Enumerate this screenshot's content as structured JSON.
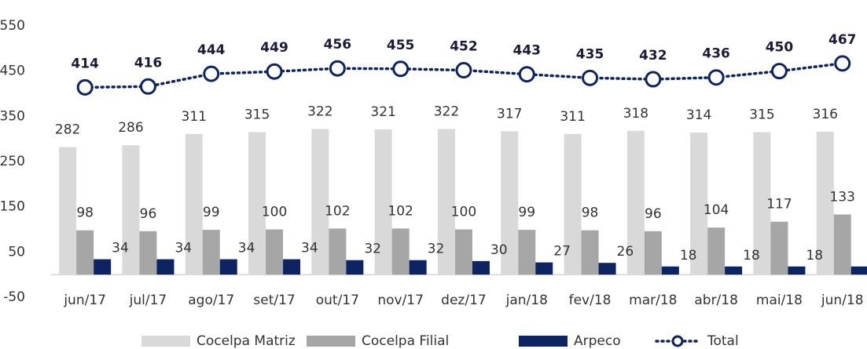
{
  "chart_data": {
    "type": "bar",
    "categories": [
      "jun/17",
      "jul/17",
      "ago/17",
      "set/17",
      "out/17",
      "nov/17",
      "dez/17",
      "jan/18",
      "fev/18",
      "mar/18",
      "abr/18",
      "mai/18",
      "jun/18"
    ],
    "series": [
      {
        "name": "Cocelpa Matriz",
        "type": "bar",
        "color": "#d9d9d9",
        "values": [
          282,
          286,
          311,
          315,
          322,
          321,
          322,
          317,
          311,
          318,
          314,
          315,
          316
        ]
      },
      {
        "name": "Cocelpa Filial",
        "type": "bar",
        "color": "#a6a6a6",
        "values": [
          98,
          96,
          99,
          100,
          102,
          102,
          100,
          99,
          98,
          96,
          104,
          117,
          133
        ]
      },
      {
        "name": "Arpeco",
        "type": "bar",
        "color": "#0c2461",
        "values": [
          34,
          34,
          34,
          34,
          32,
          32,
          30,
          27,
          26,
          18,
          18,
          18,
          18
        ]
      },
      {
        "name": "Total",
        "type": "line",
        "color": "#0c2461",
        "values": [
          414,
          416,
          444,
          449,
          456,
          455,
          452,
          443,
          435,
          432,
          436,
          450,
          467
        ]
      }
    ],
    "ylim": [
      -50,
      550
    ],
    "yticks": [
      -50,
      50,
      150,
      250,
      350,
      450,
      550
    ],
    "grid": false,
    "legend": "bottom"
  }
}
